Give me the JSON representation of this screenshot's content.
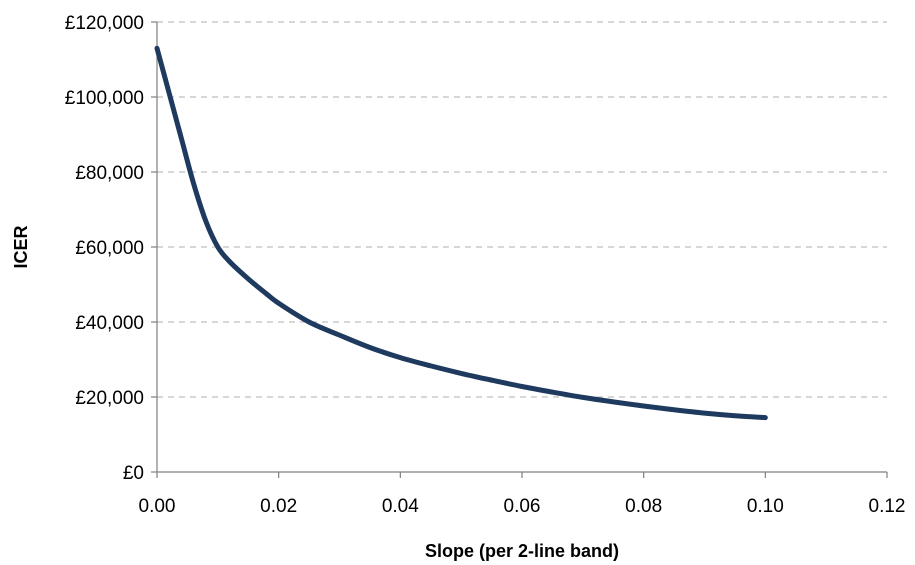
{
  "chart_data": {
    "type": "line",
    "title": "",
    "xlabel": "Slope (per 2-line band)",
    "ylabel": "ICER",
    "xlim": [
      0,
      0.12
    ],
    "ylim": [
      0,
      120000
    ],
    "x_ticks": [
      "0.00",
      "0.02",
      "0.04",
      "0.06",
      "0.08",
      "0.10",
      "0.12"
    ],
    "y_ticks": [
      "£0",
      "£20,000",
      "£40,000",
      "£60,000",
      "£80,000",
      "£100,000",
      "£120,000"
    ],
    "grid": "horizontal-dashed",
    "legend": "none",
    "series": [
      {
        "color": "#1f3a5f",
        "x": [
          0,
          0.002,
          0.004,
          0.006,
          0.008,
          0.01,
          0.012,
          0.015,
          0.018,
          0.02,
          0.025,
          0.03,
          0.035,
          0.04,
          0.045,
          0.05,
          0.055,
          0.06,
          0.065,
          0.07,
          0.075,
          0.08,
          0.085,
          0.09,
          0.095,
          0.1
        ],
        "y": [
          113000,
          101000,
          89000,
          77000,
          67000,
          60000,
          56000,
          51500,
          47500,
          45000,
          40000,
          36500,
          33200,
          30500,
          28300,
          26300,
          24500,
          22800,
          21300,
          19900,
          18700,
          17600,
          16600,
          15700,
          15000,
          14500
        ]
      }
    ]
  }
}
